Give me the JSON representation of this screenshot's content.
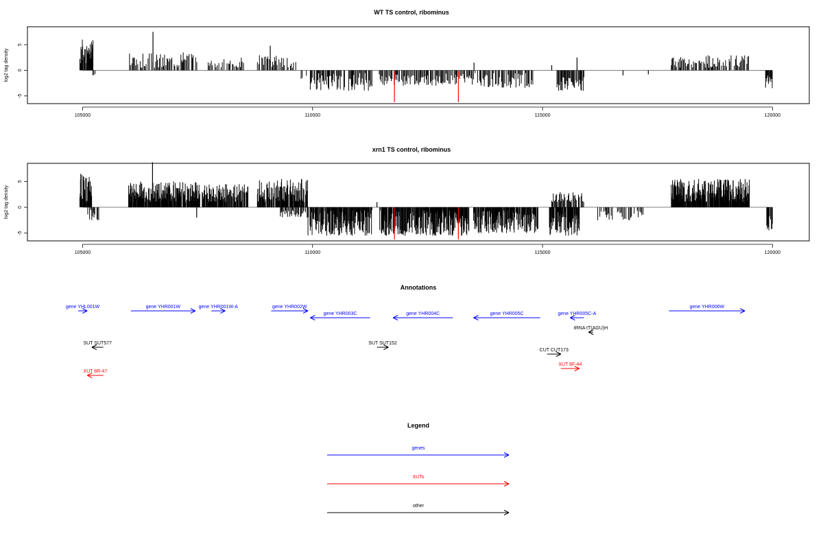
{
  "chart_data": [
    {
      "type": "bar",
      "title": "WT TS control, ribominus",
      "ylabel": "log2 tag density",
      "xlim": [
        103800,
        120800
      ],
      "ylim": [
        -6.5,
        8.5
      ],
      "xticks": [
        105000,
        110000,
        115000,
        120000
      ],
      "yticks": [
        -5,
        0,
        5
      ],
      "baseline": [
        105000,
        120000
      ],
      "clusters": [
        {
          "start": 104940,
          "end": 105230,
          "min": 1,
          "max": 6,
          "step": 9,
          "color": "#000000",
          "seed": 1
        },
        {
          "start": 105220,
          "end": 105300,
          "min": -1,
          "max": -0.5,
          "step": 30,
          "color": "#000000",
          "seed": 2
        },
        {
          "start": 106020,
          "end": 107500,
          "min": 0.5,
          "max": 3.5,
          "step": 22,
          "color": "#000000",
          "seed": 3
        },
        {
          "start": 107700,
          "end": 108500,
          "min": 0.5,
          "max": 2.5,
          "step": 25,
          "color": "#000000",
          "seed": 4
        },
        {
          "start": 108800,
          "end": 109650,
          "min": 0.5,
          "max": 3,
          "step": 24,
          "color": "#000000",
          "seed": 5
        },
        {
          "start": 109750,
          "end": 109950,
          "min": -2,
          "max": -0.5,
          "step": 40,
          "color": "#000000",
          "seed": 6
        },
        {
          "start": 109950,
          "end": 111300,
          "min": -4,
          "max": -0.5,
          "step": 18,
          "color": "#000000",
          "seed": 7
        },
        {
          "start": 111450,
          "end": 113700,
          "min": -3,
          "max": -0.5,
          "step": 20,
          "color": "#000000",
          "seed": 8
        },
        {
          "start": 113700,
          "end": 114800,
          "min": -3.5,
          "max": -0.5,
          "step": 18,
          "color": "#000000",
          "seed": 9
        },
        {
          "start": 115300,
          "end": 115900,
          "min": -4,
          "max": -0.5,
          "step": 14,
          "color": "#000000",
          "seed": 10
        },
        {
          "start": 117800,
          "end": 119500,
          "min": 0.5,
          "max": 3,
          "step": 20,
          "color": "#000000",
          "seed": 11
        },
        {
          "start": 119850,
          "end": 120000,
          "min": -3.5,
          "max": -1,
          "step": 12,
          "color": "#000000",
          "seed": 12
        }
      ],
      "spikes": [
        {
          "x": 106530,
          "v": 7.5,
          "color": "#000000"
        },
        {
          "x": 109080,
          "v": 4.8,
          "color": "#000000"
        },
        {
          "x": 113510,
          "v": 1.5,
          "color": "#000000"
        },
        {
          "x": 115200,
          "v": 1,
          "color": "#000000"
        },
        {
          "x": 115750,
          "v": 2.5,
          "color": "#000000"
        },
        {
          "x": 116750,
          "v": -1,
          "color": "#000000"
        },
        {
          "x": 117300,
          "v": -0.8,
          "color": "#000000"
        },
        {
          "x": 111780,
          "v": -6.2,
          "color": "#ff0000"
        },
        {
          "x": 113170,
          "v": -6.2,
          "color": "#ff0000"
        }
      ]
    },
    {
      "type": "bar",
      "title": "xrn1 TS control, ribominus",
      "ylabel": "log2 tag density",
      "xlim": [
        103800,
        120800
      ],
      "ylim": [
        -6.5,
        8.5
      ],
      "xticks": [
        105000,
        110000,
        115000,
        120000
      ],
      "yticks": [
        -5,
        0,
        5
      ],
      "baseline": [
        105000,
        120000
      ],
      "clusters": [
        {
          "start": 104940,
          "end": 105200,
          "min": 1,
          "max": 6.5,
          "step": 7,
          "color": "#000000",
          "seed": 21
        },
        {
          "start": 105100,
          "end": 105350,
          "min": -2.5,
          "max": -0.5,
          "step": 18,
          "color": "#000000",
          "seed": 22
        },
        {
          "start": 106000,
          "end": 107550,
          "min": 1,
          "max": 5,
          "step": 8,
          "color": "#000000",
          "seed": 23
        },
        {
          "start": 107600,
          "end": 108600,
          "min": 1,
          "max": 4.5,
          "step": 9,
          "color": "#000000",
          "seed": 24
        },
        {
          "start": 108800,
          "end": 109900,
          "min": 1,
          "max": 5.5,
          "step": 8,
          "color": "#000000",
          "seed": 25
        },
        {
          "start": 109300,
          "end": 109900,
          "min": -2,
          "max": -0.5,
          "step": 20,
          "color": "#000000",
          "seed": 26
        },
        {
          "start": 109900,
          "end": 111300,
          "min": -5.5,
          "max": -0.5,
          "step": 8,
          "color": "#000000",
          "seed": 27
        },
        {
          "start": 111450,
          "end": 113400,
          "min": -5.5,
          "max": -0.5,
          "step": 8,
          "color": "#000000",
          "seed": 28
        },
        {
          "start": 113500,
          "end": 114900,
          "min": -5,
          "max": -0.5,
          "step": 9,
          "color": "#000000",
          "seed": 29
        },
        {
          "start": 115150,
          "end": 115800,
          "min": -5.5,
          "max": -0.5,
          "step": 8,
          "color": "#000000",
          "seed": 30
        },
        {
          "start": 115200,
          "end": 115900,
          "min": 1,
          "max": 3,
          "step": 16,
          "color": "#000000",
          "seed": 31
        },
        {
          "start": 116200,
          "end": 117200,
          "min": -2.5,
          "max": -0.5,
          "step": 26,
          "color": "#000000",
          "seed": 32
        },
        {
          "start": 117800,
          "end": 119500,
          "min": 1,
          "max": 5.5,
          "step": 7,
          "color": "#000000",
          "seed": 33
        },
        {
          "start": 119850,
          "end": 120000,
          "min": -4.5,
          "max": -1,
          "step": 10,
          "color": "#000000",
          "seed": 34
        }
      ],
      "spikes": [
        {
          "x": 106520,
          "v": 8.7,
          "color": "#000000"
        },
        {
          "x": 107480,
          "v": -2,
          "color": "#000000"
        },
        {
          "x": 111400,
          "v": 1,
          "color": "#000000"
        },
        {
          "x": 111780,
          "v": -6.2,
          "color": "#ff0000"
        },
        {
          "x": 113170,
          "v": -6.2,
          "color": "#ff0000"
        }
      ]
    }
  ],
  "annotations": {
    "title": "Annotations",
    "xlim": [
      103800,
      120800
    ],
    "features": [
      {
        "label": "gene YHL001W",
        "start": 104900,
        "end": 105100,
        "dir": "+",
        "row": 0,
        "color": "#0000ff"
      },
      {
        "label": "gene YHR001W",
        "start": 106050,
        "end": 107450,
        "dir": "+",
        "row": 0,
        "color": "#0000ff"
      },
      {
        "label": "gene YHR001W-A",
        "start": 107800,
        "end": 108100,
        "dir": "+",
        "row": 0,
        "color": "#0000ff"
      },
      {
        "label": "gene YHR002W",
        "start": 109100,
        "end": 109900,
        "dir": "+",
        "row": 0,
        "color": "#0000ff"
      },
      {
        "label": "gene YHR003C",
        "start": 109950,
        "end": 111250,
        "dir": "-",
        "row": 1,
        "color": "#0000ff"
      },
      {
        "label": "gene YHR004C",
        "start": 111750,
        "end": 113050,
        "dir": "-",
        "row": 1,
        "color": "#0000ff"
      },
      {
        "label": "gene YHR005C",
        "start": 113500,
        "end": 114950,
        "dir": "-",
        "row": 1,
        "color": "#0000ff"
      },
      {
        "label": "gene YHR005C-A",
        "start": 115600,
        "end": 115900,
        "dir": "-",
        "row": 1,
        "color": "#0000ff"
      },
      {
        "label": "gene YHR006W",
        "start": 117750,
        "end": 119400,
        "dir": "+",
        "row": 0,
        "color": "#0000ff"
      },
      {
        "label": "tRNA tT(AGU)H",
        "start": 116000,
        "end": 116100,
        "dir": "-",
        "row": 2,
        "color": "#000000"
      },
      {
        "label": "SUT SUT577",
        "start": 105200,
        "end": 105450,
        "dir": "-",
        "row": 3,
        "color": "#000000"
      },
      {
        "label": "SUT SUT152",
        "start": 111400,
        "end": 111650,
        "dir": "+",
        "row": 3,
        "color": "#000000"
      },
      {
        "label": "CUT CUT173",
        "start": 115100,
        "end": 115400,
        "dir": "+",
        "row": 4,
        "color": "#000000"
      },
      {
        "label": "XUT 8F-44",
        "start": 115400,
        "end": 115800,
        "dir": "+",
        "row": 5,
        "color": "#ff0000"
      },
      {
        "label": "XUT 8R-47",
        "start": 105100,
        "end": 105450,
        "dir": "-",
        "row": 6,
        "color": "#ff0000"
      }
    ]
  },
  "legend": {
    "title": "Legend",
    "items": [
      {
        "label": "genes",
        "color": "#0000ff"
      },
      {
        "label": "XUTs",
        "color": "#ff0000"
      },
      {
        "label": "other",
        "color": "#000000"
      }
    ]
  }
}
